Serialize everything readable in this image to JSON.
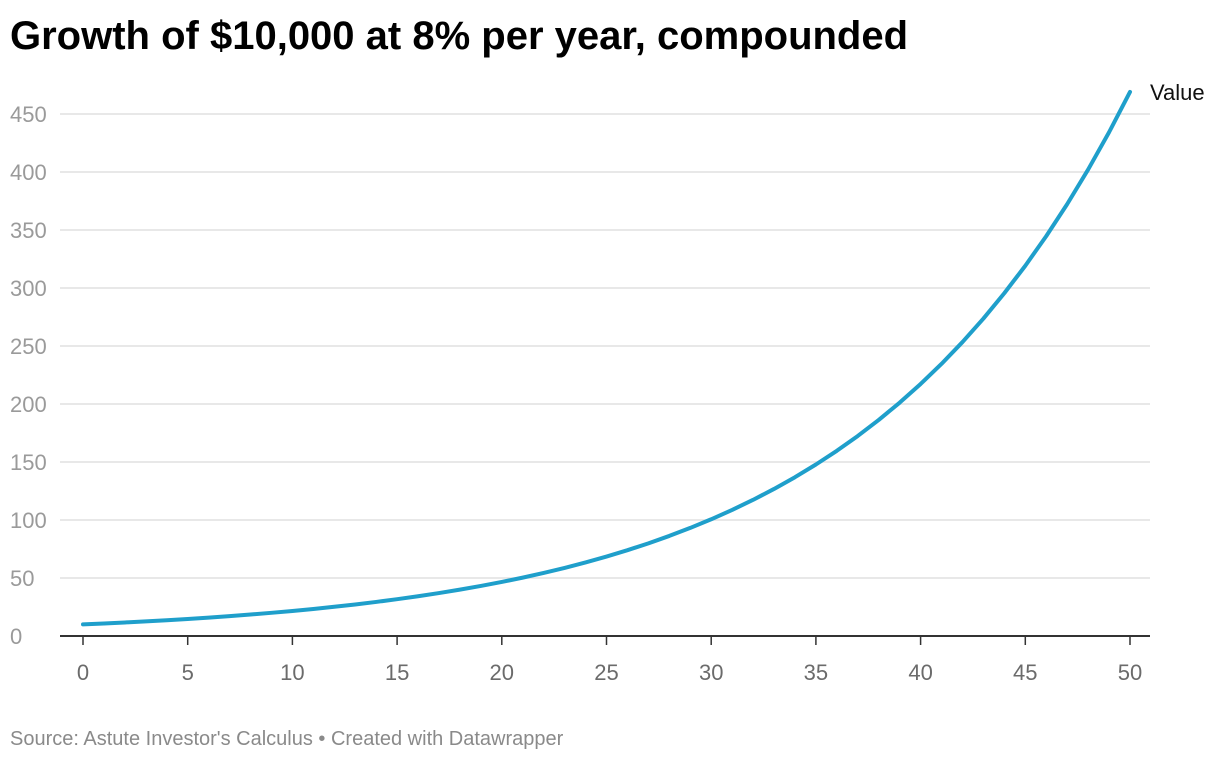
{
  "chart_data": {
    "type": "line",
    "title": "Growth of $10,000 at 8% per year, compounded",
    "xlabel": "",
    "ylabel": "",
    "x": [
      0,
      1,
      2,
      3,
      4,
      5,
      6,
      7,
      8,
      9,
      10,
      11,
      12,
      13,
      14,
      15,
      16,
      17,
      18,
      19,
      20,
      21,
      22,
      23,
      24,
      25,
      26,
      27,
      28,
      29,
      30,
      31,
      32,
      33,
      34,
      35,
      36,
      37,
      38,
      39,
      40,
      41,
      42,
      43,
      44,
      45,
      46,
      47,
      48,
      49,
      50
    ],
    "series": [
      {
        "name": "Value",
        "color": "#1f9fcb",
        "values": [
          10.0,
          10.8,
          11.66,
          12.6,
          13.6,
          14.69,
          15.87,
          17.14,
          18.51,
          19.99,
          21.59,
          23.32,
          25.18,
          27.2,
          29.37,
          31.72,
          34.26,
          37.0,
          39.96,
          43.16,
          46.61,
          50.34,
          54.37,
          58.71,
          63.41,
          68.48,
          73.96,
          79.88,
          86.27,
          93.17,
          100.63,
          108.68,
          117.37,
          126.76,
          136.9,
          147.85,
          159.68,
          172.45,
          186.25,
          201.15,
          217.25,
          234.63,
          253.4,
          273.67,
          295.56,
          319.2,
          344.74,
          372.32,
          402.1,
          434.27,
          469.02
        ]
      }
    ],
    "xlim": [
      0,
      50
    ],
    "ylim": [
      0,
      450
    ],
    "x_ticks": [
      "0",
      "5",
      "10",
      "15",
      "20",
      "25",
      "30",
      "35",
      "40",
      "45",
      "50"
    ],
    "y_ticks": [
      "0",
      "50",
      "100",
      "150",
      "200",
      "250",
      "300",
      "350",
      "400",
      "450"
    ],
    "grid": "horizontal",
    "legend": "direct label at line end",
    "colors": {
      "line": "#1f9fcb",
      "grid": "#e1e1e1",
      "axis": "#333333"
    }
  },
  "footer": {
    "source": "Source: Astute Investor's Calculus • Created with Datawrapper"
  }
}
